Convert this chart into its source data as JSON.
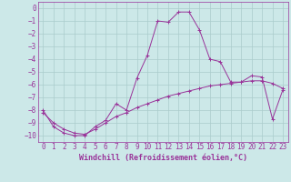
{
  "xlabel": "Windchill (Refroidissement éolien,°C)",
  "bg_color": "#cce8e8",
  "grid_color": "#aacccc",
  "line_color": "#993399",
  "xlim": [
    -0.5,
    23.5
  ],
  "ylim": [
    -10.5,
    0.5
  ],
  "xticks": [
    0,
    1,
    2,
    3,
    4,
    5,
    6,
    7,
    8,
    9,
    10,
    11,
    12,
    13,
    14,
    15,
    16,
    17,
    18,
    19,
    20,
    21,
    22,
    23
  ],
  "yticks": [
    0,
    -1,
    -2,
    -3,
    -4,
    -5,
    -6,
    -7,
    -8,
    -9,
    -10
  ],
  "line1_x": [
    0,
    1,
    2,
    3,
    4,
    5,
    6,
    7,
    8,
    9,
    10,
    11,
    12,
    13,
    14,
    15,
    16,
    17,
    18,
    19,
    20,
    21,
    22,
    23
  ],
  "line1_y": [
    -8.0,
    -9.3,
    -9.8,
    -10.0,
    -10.0,
    -9.3,
    -8.8,
    -7.5,
    -8.0,
    -5.5,
    -3.7,
    -1.0,
    -1.1,
    -0.3,
    -0.3,
    -1.7,
    -4.0,
    -4.2,
    -5.8,
    -5.8,
    -5.3,
    -5.4,
    -8.7,
    -6.4
  ],
  "line2_x": [
    0,
    1,
    2,
    3,
    4,
    5,
    6,
    7,
    8,
    9,
    10,
    11,
    12,
    13,
    14,
    15,
    16,
    17,
    18,
    19,
    20,
    21,
    22,
    23
  ],
  "line2_y": [
    -8.2,
    -9.0,
    -9.5,
    -9.8,
    -9.9,
    -9.5,
    -9.0,
    -8.5,
    -8.2,
    -7.8,
    -7.5,
    -7.2,
    -6.9,
    -6.7,
    -6.5,
    -6.3,
    -6.1,
    -6.0,
    -5.9,
    -5.8,
    -5.7,
    -5.7,
    -5.9,
    -6.3
  ],
  "tick_fontsize": 5.5,
  "xlabel_fontsize": 6.0
}
